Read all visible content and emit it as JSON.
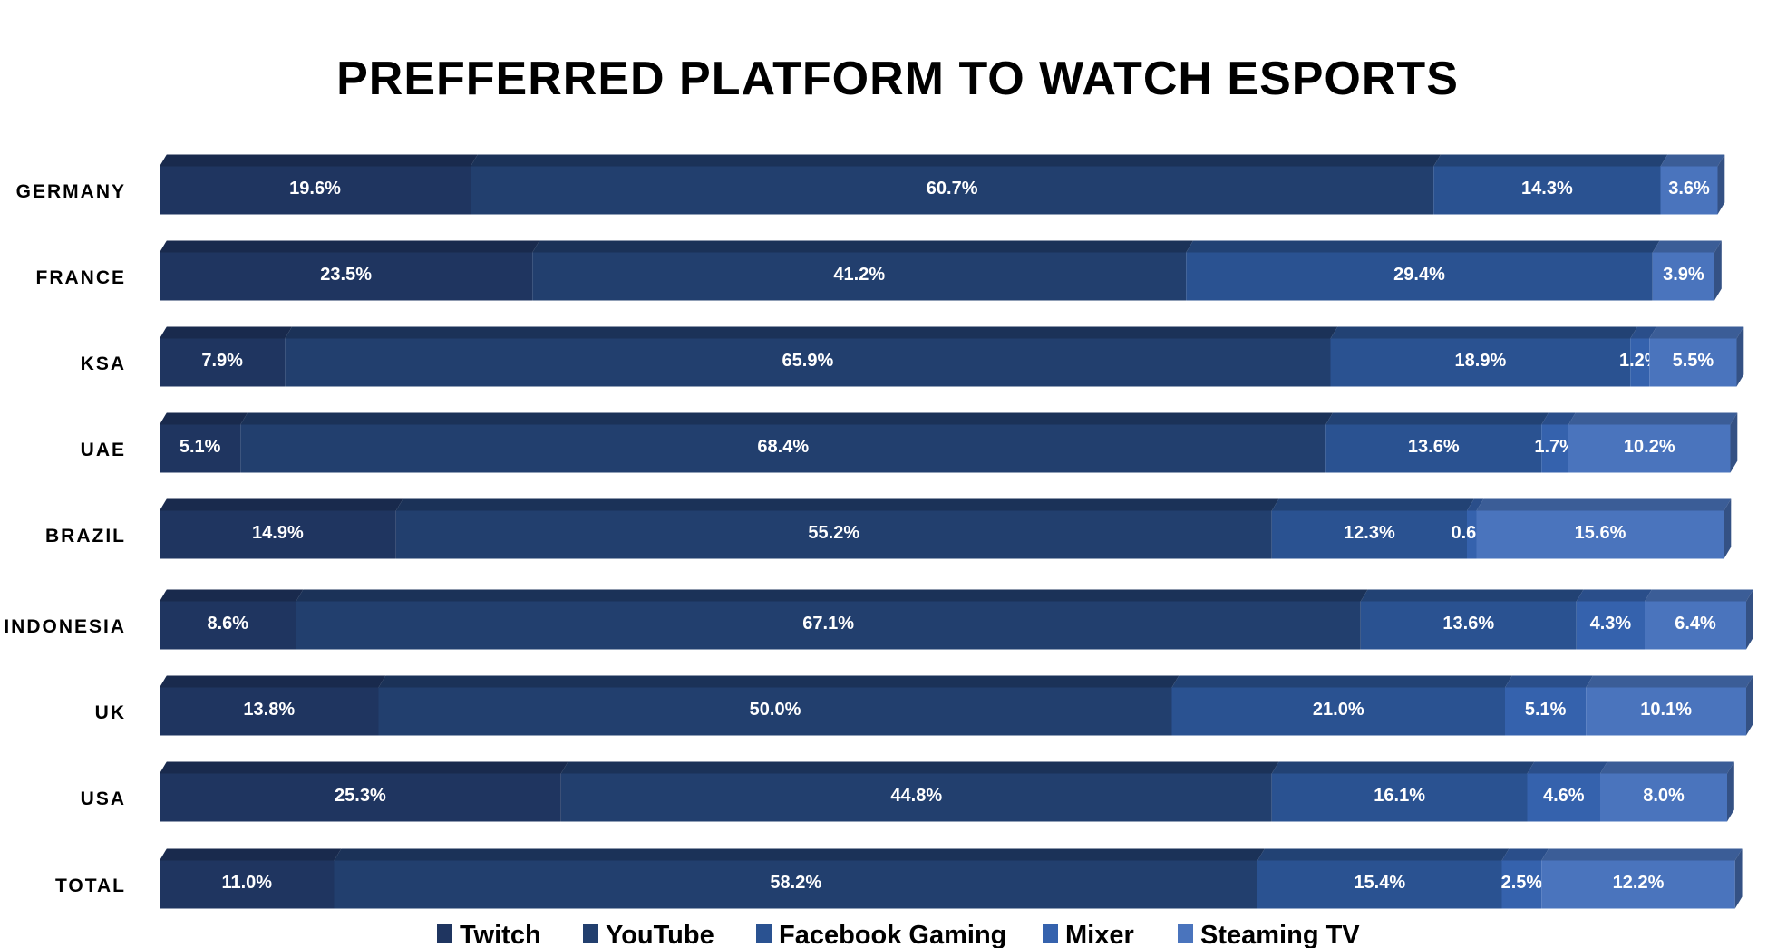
{
  "chart_data": {
    "type": "bar",
    "orientation": "horizontal",
    "stacked": true,
    "style": "3d",
    "title": "PREFFERRED PLATFORM TO WATCH ESPORTS",
    "xlabel": "",
    "ylabel": "",
    "xlim": [
      0,
      100
    ],
    "unit": "%",
    "grid": false,
    "legend_position": "bottom",
    "categories": [
      "GERMANY",
      "FRANCE",
      "KSA",
      "UAE",
      "BRAZIL",
      "INDONESIA",
      "UK",
      "USA",
      "TOTAL"
    ],
    "series": [
      {
        "name": "Twitch",
        "color": "#1f3560",
        "values": [
          19.6,
          23.5,
          7.9,
          5.1,
          14.9,
          8.6,
          13.8,
          25.3,
          11.0
        ]
      },
      {
        "name": "YouTube",
        "color": "#223f6e",
        "values": [
          60.7,
          41.2,
          65.9,
          68.4,
          55.2,
          67.1,
          50.0,
          44.8,
          58.2
        ]
      },
      {
        "name": "Facebook Gaming",
        "color": "#2a5291",
        "values": [
          14.3,
          29.4,
          18.9,
          13.6,
          12.3,
          13.6,
          21.0,
          16.1,
          15.4
        ]
      },
      {
        "name": "Mixer",
        "color": "#3562ad",
        "values": [
          null,
          null,
          1.2,
          1.7,
          0.6,
          4.3,
          5.1,
          4.6,
          2.5
        ]
      },
      {
        "name": "Steaming TV",
        "color": "#4a74bd",
        "values": [
          3.6,
          3.9,
          5.5,
          10.2,
          15.6,
          6.4,
          10.1,
          8.0,
          12.2
        ]
      }
    ]
  }
}
